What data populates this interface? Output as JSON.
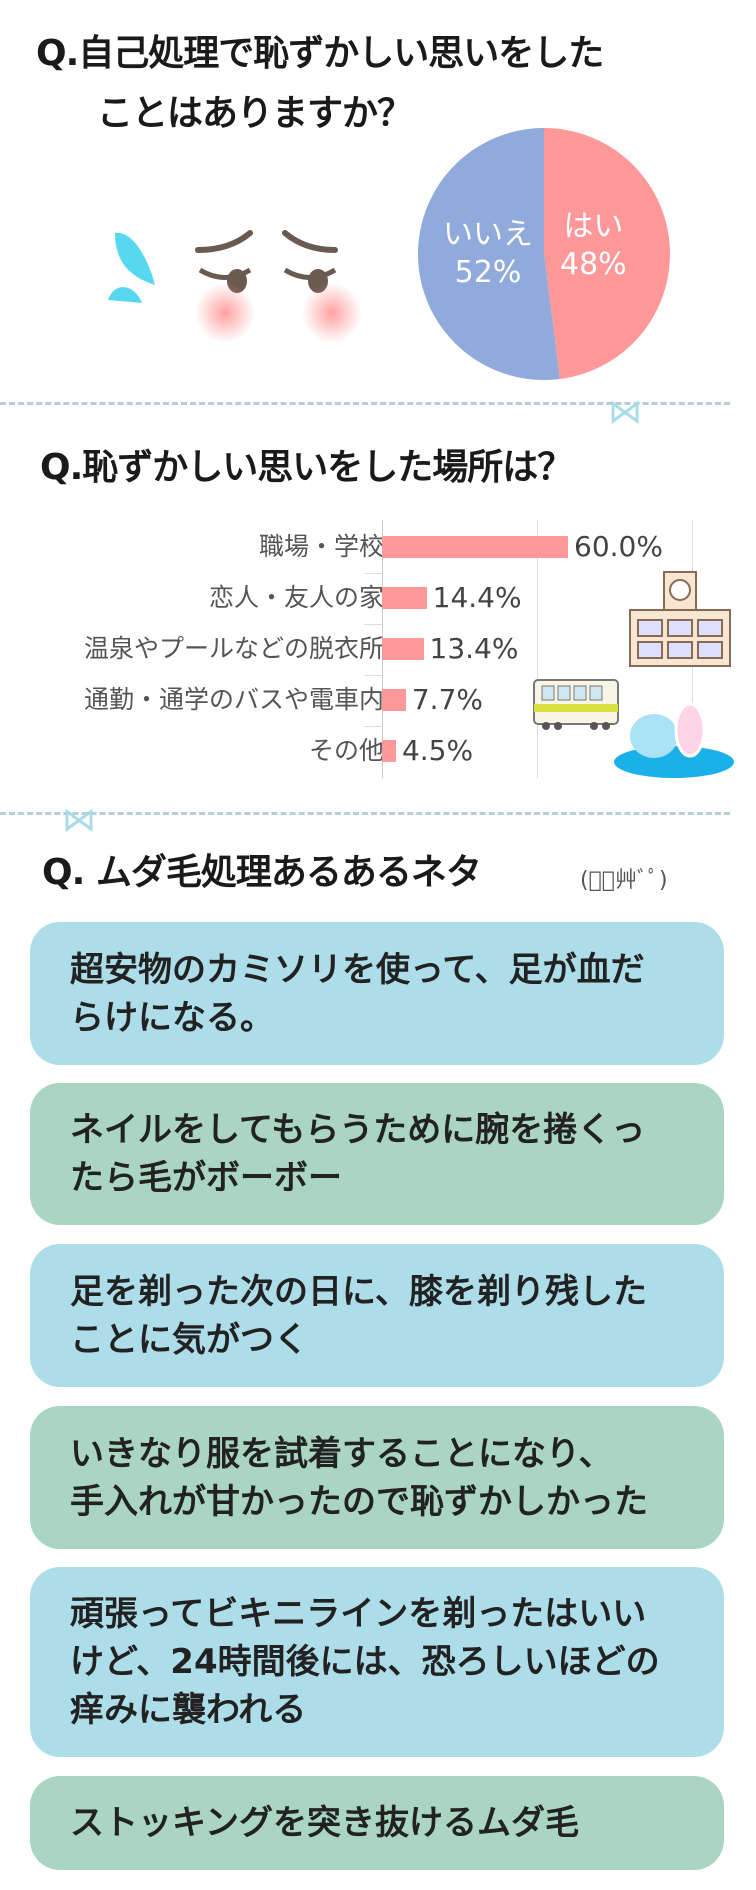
{
  "q1": {
    "title_line1": "Q.自己処理で恥ずかしい思いをした",
    "title_line2": "ことはありますか？",
    "chart_data": {
      "type": "pie",
      "slices": [
        {
          "label": "はい",
          "value": 48,
          "display": "48%",
          "color": "#ff9999"
        },
        {
          "label": "いいえ",
          "value": 52,
          "display": "52%",
          "color": "#8faadb"
        }
      ]
    }
  },
  "q2": {
    "title": "Q.恥ずかしい思いをした場所は？",
    "chart_data": {
      "type": "bar",
      "orientation": "horizontal",
      "xlim": [
        0,
        100
      ],
      "grid": true,
      "color": "#ff9999",
      "categories": [
        "職場・学校",
        "恋人・友人の家",
        "温泉やプールなどの脱衣所",
        "通勤・通学のバスや電車内",
        "その他"
      ],
      "values": [
        60.0,
        14.4,
        13.4,
        7.7,
        4.5
      ],
      "labels": [
        "60.0%",
        "14.4%",
        "13.4%",
        "7.7%",
        "4.5%"
      ]
    }
  },
  "q3": {
    "title": "Q. ムダ毛処理あるあるネタ",
    "emoticon": "(ﾟﾞ艸ﾞﾟ)",
    "items": [
      {
        "lines": [
          "超安物のカミソリを使って、足が血だ",
          "らけになる。"
        ],
        "color": "#addde8"
      },
      {
        "lines": [
          "ネイルをしてもらうために腕を捲くっ",
          "たら毛がボーボー"
        ],
        "color": "#a9d5c2"
      },
      {
        "lines": [
          "足を剃った次の日に、膝を剃り残した",
          "ことに気がつく"
        ],
        "color": "#addde8"
      },
      {
        "lines": [
          "いきなり服を試着することになり、",
          "手入れが甘かったので恥ずかしかった"
        ],
        "color": "#a9d5c2"
      },
      {
        "lines": [
          "頑張ってビキニラインを剃ったはいい",
          "けど、24時間後には、恐ろしいほどの",
          "痒みに襲われる"
        ],
        "color": "#addde8"
      },
      {
        "lines": [
          "ストッキングを突き抜けるムダ毛"
        ],
        "color": "#a9d5c2"
      }
    ]
  }
}
